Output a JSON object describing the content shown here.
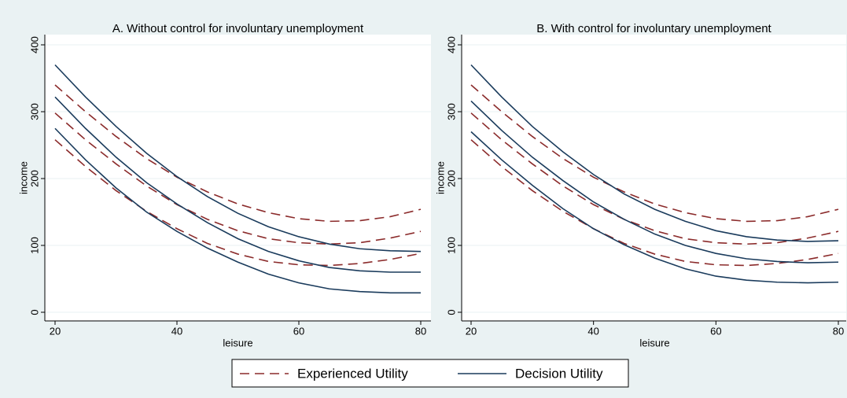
{
  "chart_data": [
    {
      "type": "line",
      "title": "A. Without control for involuntary unemployment",
      "x_label": "leisure",
      "y_label": "income",
      "x": [
        20,
        25,
        30,
        35,
        40,
        45,
        50,
        55,
        60,
        65,
        70,
        75,
        80
      ],
      "xlim": [
        20,
        80
      ],
      "xticks": [
        20,
        40,
        60,
        80
      ],
      "ylim": [
        0,
        400
      ],
      "yticks": [
        0,
        100,
        200,
        300,
        400
      ],
      "grid": true,
      "series": [
        {
          "name": "Experienced Utility",
          "color": "#8b2b2b",
          "dashed": true,
          "values": [
            340,
            300,
            263,
            230,
            202,
            180,
            162,
            149,
            140,
            136,
            137,
            143,
            154
          ]
        },
        {
          "name": "Experienced Utility",
          "color": "#8b2b2b",
          "dashed": true,
          "values": [
            298,
            258,
            222,
            189,
            161,
            139,
            122,
            110,
            104,
            102,
            104,
            111,
            121
          ]
        },
        {
          "name": "Experienced Utility",
          "color": "#8b2b2b",
          "dashed": true,
          "values": [
            258,
            218,
            182,
            151,
            125,
            103,
            87,
            76,
            71,
            70,
            73,
            79,
            88
          ]
        },
        {
          "name": "Decision Utility",
          "color": "#1a3b5c",
          "dashed": false,
          "values": [
            370,
            322,
            278,
            238,
            203,
            173,
            148,
            128,
            113,
            102,
            95,
            92,
            91
          ]
        },
        {
          "name": "Decision Utility",
          "color": "#1a3b5c",
          "dashed": false,
          "values": [
            322,
            275,
            232,
            194,
            162,
            134,
            110,
            91,
            77,
            67,
            62,
            60,
            60
          ]
        },
        {
          "name": "Decision Utility",
          "color": "#1a3b5c",
          "dashed": false,
          "values": [
            275,
            228,
            186,
            150,
            121,
            96,
            75,
            57,
            44,
            35,
            31,
            29,
            29
          ]
        }
      ]
    },
    {
      "type": "line",
      "title": "B. With control for involuntary unemployment",
      "x_label": "leisure",
      "y_label": "income",
      "x": [
        20,
        25,
        30,
        35,
        40,
        45,
        50,
        55,
        60,
        65,
        70,
        75,
        80
      ],
      "xlim": [
        20,
        80
      ],
      "xticks": [
        20,
        40,
        60,
        80
      ],
      "ylim": [
        0,
        400
      ],
      "yticks": [
        0,
        100,
        200,
        300,
        400
      ],
      "grid": true,
      "series": [
        {
          "name": "Experienced Utility",
          "color": "#8b2b2b",
          "dashed": true,
          "values": [
            340,
            300,
            263,
            230,
            202,
            180,
            162,
            149,
            140,
            136,
            137,
            143,
            154
          ]
        },
        {
          "name": "Experienced Utility",
          "color": "#8b2b2b",
          "dashed": true,
          "values": [
            298,
            258,
            222,
            189,
            161,
            139,
            122,
            110,
            104,
            102,
            104,
            111,
            121
          ]
        },
        {
          "name": "Experienced Utility",
          "color": "#8b2b2b",
          "dashed": true,
          "values": [
            258,
            218,
            182,
            151,
            125,
            103,
            87,
            76,
            71,
            70,
            73,
            79,
            88
          ]
        },
        {
          "name": "Decision Utility",
          "color": "#1a3b5c",
          "dashed": false,
          "values": [
            370,
            322,
            278,
            240,
            206,
            177,
            154,
            136,
            122,
            113,
            108,
            106,
            107
          ]
        },
        {
          "name": "Decision Utility",
          "color": "#1a3b5c",
          "dashed": false,
          "values": [
            316,
            272,
            232,
            197,
            165,
            139,
            117,
            100,
            88,
            80,
            76,
            74,
            75
          ]
        },
        {
          "name": "Decision Utility",
          "color": "#1a3b5c",
          "dashed": false,
          "values": [
            270,
            228,
            190,
            155,
            125,
            101,
            81,
            65,
            54,
            48,
            45,
            44,
            45
          ]
        }
      ]
    }
  ]
}
